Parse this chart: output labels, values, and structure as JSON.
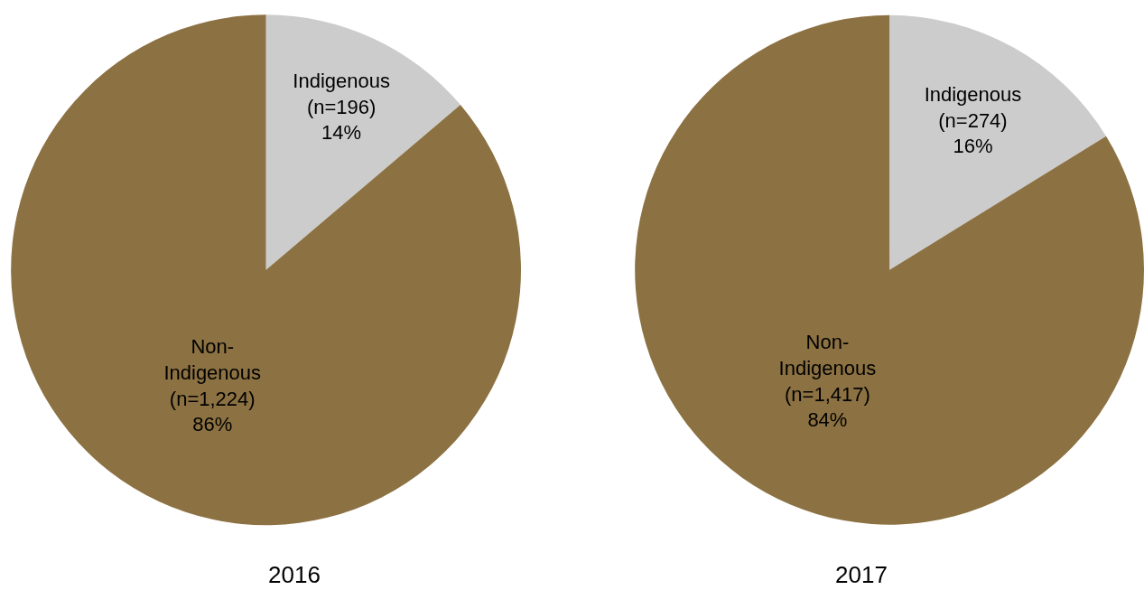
{
  "chart_data": [
    {
      "type": "pie",
      "title": "2016",
      "categories": [
        "Indigenous",
        "Non-Indigenous"
      ],
      "values": [
        196,
        1224
      ],
      "value_labels": [
        "(n=196)\n14%",
        "(n=1,224)\n86%"
      ],
      "colors": [
        "#cccccc",
        "#8c7142"
      ]
    },
    {
      "type": "pie",
      "title": "2017",
      "categories": [
        "Indigenous",
        "Non-Indigenous"
      ],
      "values": [
        274,
        1417
      ],
      "value_labels": [
        "(n=274)\n16%",
        "(n=1,417)\n84%"
      ],
      "colors": [
        "#cccccc",
        "#8c7142"
      ]
    }
  ]
}
